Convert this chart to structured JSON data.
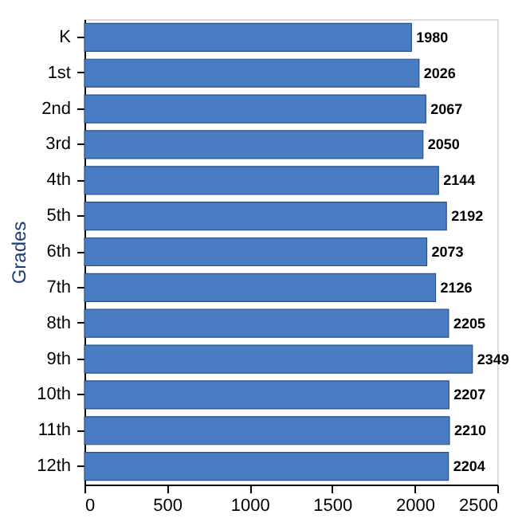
{
  "chart_data": {
    "type": "bar",
    "orientation": "horizontal",
    "ylabel": "Grades",
    "categories": [
      "K",
      "1st",
      "2nd",
      "3rd",
      "4th",
      "5th",
      "6th",
      "7th",
      "8th",
      "9th",
      "10th",
      "11th",
      "12th"
    ],
    "values": [
      1980,
      2026,
      2067,
      2050,
      2144,
      2192,
      2073,
      2126,
      2205,
      2349,
      2207,
      2210,
      2204
    ],
    "color": "#4a7cc4",
    "xlim": [
      0,
      2500
    ],
    "xticks": [
      0,
      500,
      1000,
      1500,
      2000,
      2500
    ],
    "data_labels": true,
    "grid": false
  }
}
